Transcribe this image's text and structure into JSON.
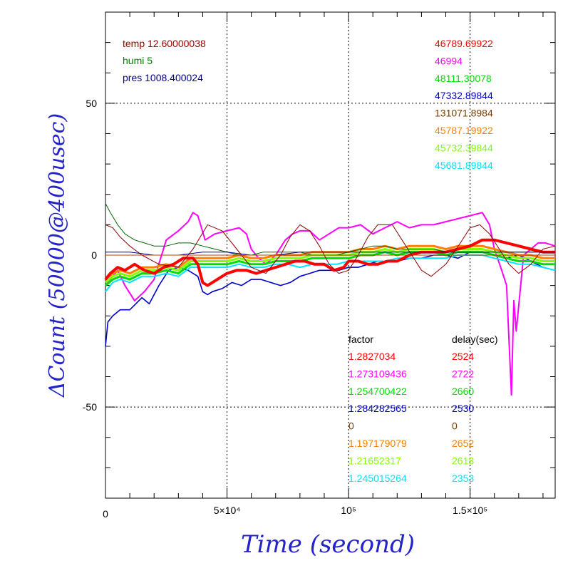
{
  "chart_data": {
    "type": "line",
    "xlabel": "Time (second)",
    "ylabel": "ΔCount (50000@400usec)",
    "xlim": [
      0,
      185000
    ],
    "ylim": [
      -80,
      80
    ],
    "x_ticks": [
      {
        "value": 0,
        "label": "0"
      },
      {
        "value": 50000,
        "label": "5×10⁴"
      },
      {
        "value": 100000,
        "label": "10⁵"
      },
      {
        "value": 150000,
        "label": "1.5×10⁵"
      }
    ],
    "y_ticks": [
      {
        "value": 50,
        "label": "50"
      },
      {
        "value": 0,
        "label": "0"
      },
      {
        "value": -50,
        "label": "-50"
      }
    ],
    "grid": "dotted at labeled ticks",
    "env_legend": [
      {
        "text": "temp 12.60000038",
        "color": "#a00000"
      },
      {
        "text": "humi 5",
        "color": "#008000"
      },
      {
        "text": "pres 1008.400024",
        "color": "#00008b"
      }
    ],
    "offset_legend": [
      {
        "text": "46789.69922",
        "color": "#ff0000"
      },
      {
        "text": "46994",
        "color": "#ff00ff"
      },
      {
        "text": "48111.30078",
        "color": "#00dd00"
      },
      {
        "text": "47332.89844",
        "color": "#0000cc"
      },
      {
        "text": "131071.8984",
        "color": "#7a3b00"
      },
      {
        "text": "45787.19922",
        "color": "#ff8000"
      },
      {
        "text": "45732.39844",
        "color": "#80ff00"
      },
      {
        "text": "45681.89844",
        "color": "#00e5ff"
      }
    ],
    "factor_header": "factor",
    "delay_header": "delay(sec)",
    "factor_table": [
      {
        "factor": "1.2827034",
        "delay": "2524",
        "color": "#ff0000"
      },
      {
        "factor": "1.273109436",
        "delay": "2722",
        "color": "#ff00ff"
      },
      {
        "factor": "1.254700422",
        "delay": "2660",
        "color": "#00dd00"
      },
      {
        "factor": "1.284282565",
        "delay": "2530",
        "color": "#0000cc"
      },
      {
        "factor": "0",
        "delay": "0",
        "color": "#7a3b00"
      },
      {
        "factor": "1.197179079",
        "delay": "2652",
        "color": "#ff8000"
      },
      {
        "factor": "1.21652317",
        "delay": "2618",
        "color": "#80ff00"
      },
      {
        "factor": "1.245015264",
        "delay": "2353",
        "color": "#00e5ff"
      }
    ],
    "series": [
      {
        "color": "#ff00ff",
        "width": 2,
        "x": [
          0,
          2000,
          5000,
          8000,
          12000,
          16000,
          20000,
          25000,
          30000,
          34000,
          36000,
          38000,
          41000,
          45000,
          50000,
          55000,
          58000,
          60000,
          63000,
          66000,
          70000,
          74000,
          77000,
          80000,
          84000,
          88000,
          92000,
          96000,
          100000,
          105000,
          110000,
          115000,
          120000,
          125000,
          130000,
          135000,
          140000,
          145000,
          150000,
          155000,
          158000,
          160000,
          163000,
          165000,
          167000,
          168000,
          169000,
          172000,
          175000,
          178000,
          181000,
          185000
        ],
        "y": [
          -10,
          -8,
          -5,
          -10,
          -15,
          -12,
          -8,
          5,
          8,
          11,
          14,
          13,
          5,
          7,
          8,
          9,
          7,
          2,
          -1,
          -3,
          0,
          5,
          7,
          8,
          8,
          5,
          7,
          9,
          9,
          10,
          7,
          9,
          11,
          9,
          10,
          10,
          11,
          12,
          13,
          14,
          10,
          2,
          -5,
          -10,
          -46,
          -15,
          -25,
          0,
          2,
          4,
          4,
          3
        ]
      },
      {
        "color": "#0000cc",
        "width": 1.6,
        "x": [
          0,
          1000,
          3000,
          6000,
          10000,
          15000,
          18000,
          22000,
          26000,
          30000,
          34000,
          36000,
          38000,
          40000,
          42000,
          44000,
          48000,
          52000,
          56000,
          60000,
          64000,
          68000,
          72000,
          76000,
          80000,
          84000,
          88000,
          92000,
          96000,
          100000,
          104000,
          108000,
          112000,
          116000,
          120000,
          125000,
          130000,
          135000,
          140000,
          145000,
          150000,
          155000,
          160000,
          165000,
          170000,
          175000,
          180000,
          185000
        ],
        "y": [
          -30,
          -22,
          -20,
          -18,
          -18,
          -14,
          -16,
          -10,
          -5,
          -4,
          -5,
          -6,
          -7,
          -12,
          -13,
          -12,
          -11,
          -9,
          -10,
          -8,
          -8,
          -9,
          -10,
          -9,
          -7,
          -6,
          -5,
          -5,
          -5,
          -4,
          -4,
          -3,
          -2,
          -2,
          -2,
          -1,
          -1,
          0,
          0,
          -1,
          1,
          1,
          0,
          -1,
          0,
          -2,
          -4,
          -5
        ]
      },
      {
        "color": "#00e5ff",
        "width": 2,
        "x": [
          0,
          3000,
          6000,
          10000,
          15000,
          20000,
          25000,
          30000,
          35000,
          40000,
          45000,
          50000,
          55000,
          60000,
          65000,
          70000,
          75000,
          80000,
          85000,
          90000,
          95000,
          100000,
          105000,
          110000,
          115000,
          120000,
          125000,
          130000,
          135000,
          140000,
          145000,
          150000,
          155000,
          160000,
          165000,
          170000,
          175000,
          180000,
          185000
        ],
        "y": [
          -12,
          -9,
          -8,
          -9,
          -7,
          -7,
          -6,
          -7,
          -4,
          -4,
          -4,
          -4,
          -3,
          -4,
          -4,
          -3,
          -3,
          -4,
          -3,
          -3,
          -3,
          -2,
          -2,
          -2,
          -2,
          -1,
          -1,
          -1,
          -1,
          -1,
          0,
          0,
          0,
          -1,
          -2,
          -3,
          -3,
          -4,
          -5
        ]
      },
      {
        "color": "#00dd00",
        "width": 3,
        "x": [
          0,
          3000,
          6000,
          10000,
          15000,
          20000,
          25000,
          30000,
          35000,
          40000,
          45000,
          50000,
          55000,
          60000,
          65000,
          70000,
          75000,
          80000,
          85000,
          90000,
          95000,
          100000,
          105000,
          110000,
          115000,
          120000,
          125000,
          130000,
          135000,
          140000,
          145000,
          150000,
          155000,
          160000,
          165000,
          170000,
          175000,
          180000,
          185000
        ],
        "y": [
          -10,
          -8,
          -7,
          -8,
          -6,
          -6,
          -5,
          -6,
          -3,
          -3,
          -3,
          -3,
          -2,
          -3,
          -3,
          -2,
          -2,
          -2,
          -1,
          -1,
          -1,
          -1,
          0,
          0,
          1,
          0,
          1,
          1,
          1,
          0,
          1,
          1,
          1,
          0,
          -1,
          -2,
          -2,
          -3,
          -3
        ]
      },
      {
        "color": "#80ff00",
        "width": 3,
        "x": [
          0,
          3000,
          6000,
          10000,
          15000,
          20000,
          25000,
          30000,
          35000,
          40000,
          45000,
          50000,
          55000,
          60000,
          65000,
          70000,
          75000,
          80000,
          85000,
          90000,
          95000,
          100000,
          105000,
          110000,
          115000,
          120000,
          125000,
          130000,
          135000,
          140000,
          145000,
          150000,
          155000,
          160000,
          165000,
          170000,
          175000,
          180000,
          185000
        ],
        "y": [
          -9,
          -7,
          -6,
          -7,
          -5,
          -5,
          -4,
          -5,
          -2,
          -2,
          -2,
          -2,
          -1,
          -2,
          -2,
          -1,
          -1,
          -1,
          0,
          0,
          0,
          0,
          1,
          1,
          2,
          1,
          2,
          2,
          2,
          1,
          2,
          2,
          2,
          1,
          0,
          -1,
          -1,
          -2,
          -2
        ]
      },
      {
        "color": "#ff8000",
        "width": 3,
        "x": [
          0,
          3000,
          6000,
          10000,
          15000,
          20000,
          25000,
          30000,
          35000,
          40000,
          45000,
          50000,
          55000,
          60000,
          65000,
          70000,
          75000,
          80000,
          85000,
          90000,
          95000,
          100000,
          105000,
          110000,
          115000,
          120000,
          125000,
          130000,
          135000,
          140000,
          145000,
          150000,
          155000,
          160000,
          165000,
          170000,
          175000,
          180000,
          185000
        ],
        "y": [
          -8,
          -6,
          -5,
          -6,
          -4,
          -4,
          -3,
          -4,
          -1,
          -1,
          -1,
          -1,
          0,
          -1,
          -1,
          0,
          0,
          0,
          1,
          1,
          1,
          1,
          2,
          2,
          3,
          2,
          3,
          3,
          3,
          2,
          3,
          3,
          3,
          2,
          1,
          0,
          0,
          -1,
          -1
        ]
      },
      {
        "color": "#ff0000",
        "width": 4,
        "x": [
          0,
          2000,
          5000,
          8000,
          12000,
          16000,
          20000,
          24000,
          28000,
          32000,
          36000,
          38000,
          40000,
          42000,
          46000,
          50000,
          54000,
          58000,
          62000,
          66000,
          70000,
          74000,
          78000,
          82000,
          86000,
          90000,
          94000,
          98000,
          100000,
          104000,
          108000,
          112000,
          116000,
          120000,
          125000,
          130000,
          135000,
          140000,
          145000,
          150000,
          155000,
          160000,
          165000,
          170000,
          175000,
          180000,
          185000
        ],
        "y": [
          -8,
          -6,
          -4,
          -5,
          -3,
          -5,
          -6,
          -4,
          -3,
          -1,
          -1,
          -3,
          -9,
          -10,
          -8,
          -6,
          -5,
          -5,
          -6,
          -5,
          -4,
          -3,
          -2,
          -2,
          -3,
          -3,
          -5,
          -4,
          -2,
          -2,
          -3,
          -3,
          -2,
          -2,
          0,
          1,
          1,
          1,
          2,
          3,
          5,
          5,
          4,
          3,
          2,
          1,
          1
        ]
      },
      {
        "color": "#8b0000",
        "width": 1,
        "x": [
          0,
          3000,
          6000,
          10000,
          15000,
          22000,
          30000,
          36000,
          42000,
          48000,
          54000,
          60000,
          66000,
          72000,
          76000,
          80000,
          84000,
          88000,
          92000,
          96000,
          100000,
          104000,
          108000,
          112000,
          118000,
          122000,
          126000,
          130000,
          134000,
          140000,
          146000,
          150000,
          154000,
          158000,
          162000,
          166000,
          170000,
          175000,
          180000,
          185000
        ],
        "y": [
          10,
          9,
          6,
          3,
          0,
          -3,
          -4,
          2,
          10,
          8,
          2,
          -4,
          -6,
          0,
          6,
          10,
          8,
          3,
          -3,
          -6,
          -5,
          0,
          6,
          10,
          10,
          5,
          0,
          -5,
          -7,
          -3,
          4,
          9,
          10,
          7,
          2,
          -3,
          -6,
          -3,
          2,
          3
        ]
      },
      {
        "color": "#006400",
        "width": 1,
        "x": [
          0,
          2000,
          5000,
          8000,
          12000,
          16000,
          20000,
          25000,
          30000,
          35000,
          40000,
          45000,
          50000,
          55000,
          60000,
          65000,
          70000,
          75000,
          80000,
          85000,
          90000,
          95000,
          100000,
          105000,
          110000,
          115000,
          120000,
          125000,
          130000,
          135000,
          140000,
          145000,
          150000,
          155000,
          160000,
          165000,
          170000,
          175000,
          180000,
          185000
        ],
        "y": [
          17,
          14,
          10,
          7,
          5,
          4,
          3,
          3,
          4,
          4,
          3,
          2,
          1,
          0,
          0,
          1,
          1,
          1,
          1,
          0,
          0,
          0,
          1,
          2,
          3,
          3,
          2,
          2,
          2,
          2,
          1,
          1,
          1,
          1,
          1,
          1,
          1,
          1,
          1,
          1
        ]
      },
      {
        "color": "#00008b",
        "width": 1,
        "x": [
          0,
          10000,
          20000,
          30000,
          40000,
          50000,
          60000,
          70000,
          80000,
          90000,
          100000,
          110000,
          120000,
          130000,
          140000,
          150000,
          160000,
          170000,
          180000,
          185000
        ],
        "y": [
          1,
          1,
          0,
          0,
          1,
          1,
          0,
          0,
          1,
          1,
          1,
          1,
          1,
          1,
          1,
          1,
          1,
          1,
          1,
          1
        ]
      },
      {
        "color": "#b04000",
        "width": 1,
        "x": [
          0,
          185000
        ],
        "y": [
          0,
          0
        ]
      }
    ]
  }
}
